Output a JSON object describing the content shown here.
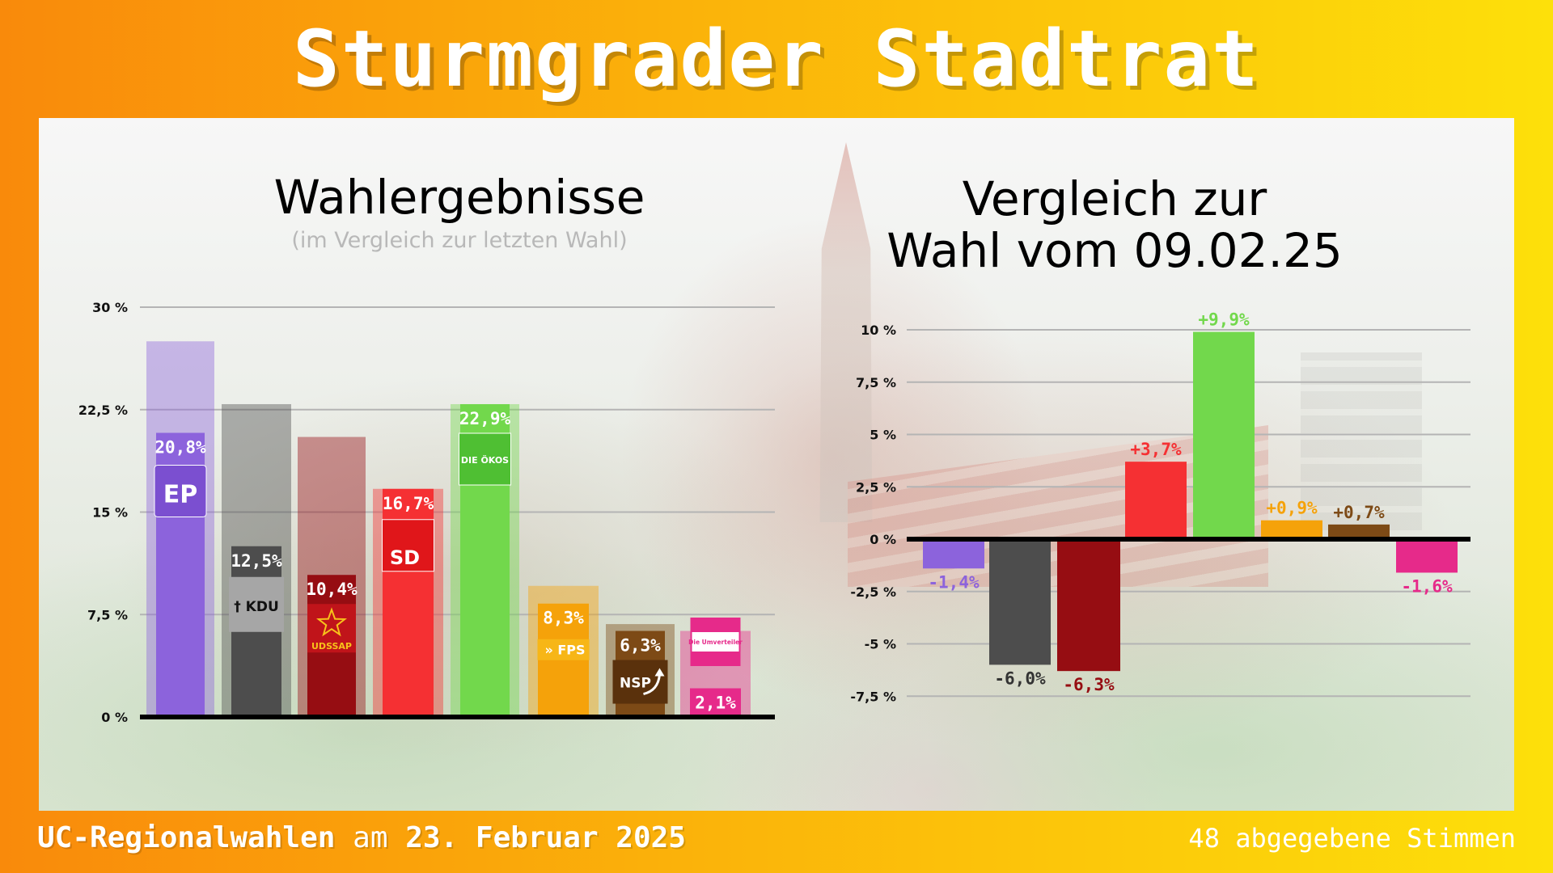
{
  "header": {
    "title": "Sturmgrader Stadtrat"
  },
  "footer": {
    "event": "UC-Regionalwahlen",
    "date_prefix": "am",
    "date": "23. Februar 2025",
    "votes": "48 abgegebene Stimmen"
  },
  "colors": {
    "EP": "#8c63dc",
    "KDU": "#4d4d4d",
    "UDSSAP": "#960d12",
    "SD": "#f53033",
    "DIE ÖKOS": "#72d84c",
    "FPS": "#f5a20a",
    "NSP": "#7d4a16",
    "Die Umverteiler": "#e62a8a"
  },
  "chart_data": [
    {
      "type": "bar",
      "title": "Wahlergebnisse",
      "subtitle": "(im Vergleich zur letzten Wahl)",
      "categories": [
        "EP",
        "KDU",
        "UDSSAP",
        "SD",
        "DIE ÖKOS",
        "FPS",
        "NSP",
        "Die Umverteiler"
      ],
      "series": [
        {
          "values": [
            20.8,
            12.5,
            10.4,
            16.7,
            22.9,
            8.3,
            6.3,
            2.1
          ]
        },
        {
          "values": [
            27.5,
            22.9,
            20.5,
            16.7,
            22.9,
            9.6,
            6.8,
            6.3
          ]
        }
      ],
      "value_labels": [
        "20,8%",
        "12,5%",
        "10,4%",
        "16,7%",
        "22,9%",
        "8,3%",
        "6,3%",
        "2,1%"
      ],
      "party_logos": [
        "EP",
        "KDU",
        "UDSSAP",
        "SD",
        "DIE ÖKOS",
        "FPS",
        "NSP",
        "Die Umverteiler"
      ],
      "ylim": [
        0,
        30
      ],
      "yticks": [
        0,
        7.5,
        15,
        22.5,
        30
      ],
      "ytick_labels": [
        "0 %",
        "7,5 %",
        "15 %",
        "22,5 %",
        "30 %"
      ],
      "grid": true
    },
    {
      "type": "bar",
      "title_lines": [
        "Vergleich zur",
        "Wahl vom 09.02.25"
      ],
      "categories": [
        "EP",
        "KDU",
        "UDSSAP",
        "SD",
        "DIE ÖKOS",
        "FPS",
        "NSP",
        "Die Umverteiler"
      ],
      "values": [
        -1.4,
        -6.0,
        -6.3,
        3.7,
        9.9,
        0.9,
        0.7,
        -1.6
      ],
      "value_labels": [
        "-1,4%",
        "-6,0%",
        "-6,3%",
        "+3,7%",
        "+9,9%",
        "+0,9%",
        "+0,7%",
        "-1,6%"
      ],
      "ylim": [
        -7.5,
        10
      ],
      "yticks": [
        -7.5,
        -5,
        -2.5,
        0,
        2.5,
        5,
        7.5,
        10
      ],
      "ytick_labels": [
        "-7,5 %",
        "-5 %",
        "-2,5 %",
        "0 %",
        "2,5 %",
        "5 %",
        "7,5 %",
        "10 %"
      ],
      "grid": true
    }
  ]
}
